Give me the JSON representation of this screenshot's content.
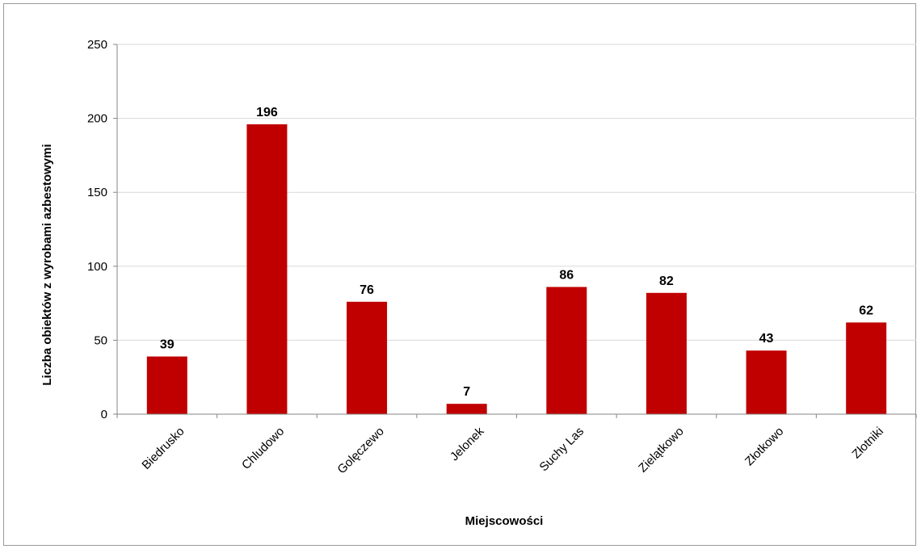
{
  "chart_data": {
    "type": "bar",
    "title": "",
    "xlabel": "Miejscowości",
    "ylabel": "Liczba obiektów z wyrobami azbestowymi",
    "categories": [
      "Biedrusko",
      "Chludowo",
      "Golęczewo",
      "Jelonek",
      "Suchy Las",
      "Zielątkowo",
      "Złotkowo",
      "Złotniki"
    ],
    "values": [
      39,
      196,
      76,
      7,
      86,
      82,
      43,
      62
    ],
    "ylim": [
      0,
      250
    ],
    "yticks": [
      0,
      50,
      100,
      150,
      200,
      250
    ],
    "grid": true,
    "legend": "none",
    "bar_color": "#c00000",
    "grid_color": "#d9d9d9",
    "axis_color": "#868686"
  }
}
